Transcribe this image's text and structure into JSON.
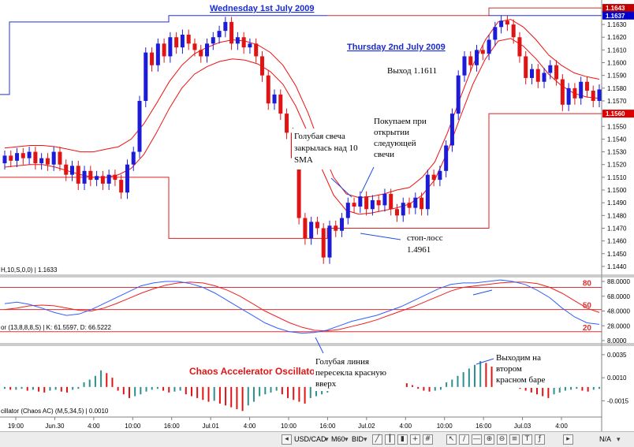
{
  "chart_data": {
    "type": "candlestick",
    "instrument": "USD/CAD",
    "timeframe": "M60",
    "price_axis": {
      "ylim": [
        1.1435,
        1.1648
      ],
      "ticks": [
        "1.1640",
        "1.1630",
        "1.1620",
        "1.1610",
        "1.1600",
        "1.1590",
        "1.1580",
        "1.1570",
        "1.1560",
        "1.1550",
        "1.1540",
        "1.1530",
        "1.1520",
        "1.1510",
        "1.1500",
        "1.1490",
        "1.1480",
        "1.1470",
        "1.1460",
        "1.1450",
        "1.1440"
      ],
      "markers": [
        {
          "label": "1.1643",
          "price": 1.1643,
          "color": "#c00000"
        },
        {
          "label": "1.1637",
          "price": 1.1637,
          "color": "#0000cc"
        },
        {
          "label": "1.1560",
          "price": 1.156,
          "color": "#dd0000"
        }
      ]
    },
    "time_axis": [
      "19:00",
      "Jun.30",
      "4:00",
      "10:00",
      "16:00",
      "Jul.01",
      "4:00",
      "10:00",
      "16:00",
      "Jul.02",
      "4:00",
      "10:00",
      "16:00",
      "Jul.03",
      "4:00"
    ],
    "day_labels": {
      "day1": "Wednesday 1st July 2009",
      "day2": "Thursday 2nd July 2009"
    },
    "candles": [
      {
        "o": 1.1521,
        "c": 1.1527
      },
      {
        "o": 1.1527,
        "c": 1.1523
      },
      {
        "o": 1.1523,
        "c": 1.1529
      },
      {
        "o": 1.1529,
        "c": 1.1525
      },
      {
        "o": 1.1525,
        "c": 1.153
      },
      {
        "o": 1.153,
        "c": 1.1521
      },
      {
        "o": 1.1521,
        "c": 1.1525
      },
      {
        "o": 1.1525,
        "c": 1.152
      },
      {
        "o": 1.152,
        "c": 1.153
      },
      {
        "o": 1.153,
        "c": 1.152
      },
      {
        "o": 1.152,
        "c": 1.1512
      },
      {
        "o": 1.1512,
        "c": 1.1519
      },
      {
        "o": 1.1519,
        "c": 1.1505
      },
      {
        "o": 1.1505,
        "c": 1.1515
      },
      {
        "o": 1.1515,
        "c": 1.1508
      },
      {
        "o": 1.1508,
        "c": 1.1511
      },
      {
        "o": 1.1511,
        "c": 1.1505
      },
      {
        "o": 1.1505,
        "c": 1.1512
      },
      {
        "o": 1.1512,
        "c": 1.1508
      },
      {
        "o": 1.1508,
        "c": 1.1498
      },
      {
        "o": 1.1498,
        "c": 1.152
      },
      {
        "o": 1.152,
        "c": 1.153
      },
      {
        "o": 1.153,
        "c": 1.157
      },
      {
        "o": 1.157,
        "c": 1.1608
      },
      {
        "o": 1.1608,
        "c": 1.1598
      },
      {
        "o": 1.1598,
        "c": 1.1615
      },
      {
        "o": 1.1615,
        "c": 1.1605
      },
      {
        "o": 1.1605,
        "c": 1.162
      },
      {
        "o": 1.162,
        "c": 1.1612
      },
      {
        "o": 1.1612,
        "c": 1.1622
      },
      {
        "o": 1.1622,
        "c": 1.1615
      },
      {
        "o": 1.1615,
        "c": 1.161
      },
      {
        "o": 1.161,
        "c": 1.1605
      },
      {
        "o": 1.1605,
        "c": 1.1615
      },
      {
        "o": 1.1615,
        "c": 1.162
      },
      {
        "o": 1.162,
        "c": 1.1625
      },
      {
        "o": 1.1625,
        "c": 1.1632
      },
      {
        "o": 1.1632,
        "c": 1.1615
      },
      {
        "o": 1.1615,
        "c": 1.162
      },
      {
        "o": 1.162,
        "c": 1.1612
      },
      {
        "o": 1.1612,
        "c": 1.1615
      },
      {
        "o": 1.1615,
        "c": 1.1605
      },
      {
        "o": 1.1605,
        "c": 1.159
      },
      {
        "o": 1.159,
        "c": 1.1568
      },
      {
        "o": 1.1568,
        "c": 1.1575
      },
      {
        "o": 1.1575,
        "c": 1.156
      },
      {
        "o": 1.156,
        "c": 1.1545
      },
      {
        "o": 1.1545,
        "c": 1.1525
      },
      {
        "o": 1.1525,
        "c": 1.1478
      },
      {
        "o": 1.1478,
        "c": 1.1462
      },
      {
        "o": 1.1462,
        "c": 1.1475
      },
      {
        "o": 1.1475,
        "c": 1.147
      },
      {
        "o": 1.147,
        "c": 1.1447
      },
      {
        "o": 1.1447,
        "c": 1.1472
      },
      {
        "o": 1.1472,
        "c": 1.1468
      },
      {
        "o": 1.1468,
        "c": 1.1478
      },
      {
        "o": 1.1478,
        "c": 1.149
      },
      {
        "o": 1.149,
        "c": 1.1487
      },
      {
        "o": 1.1487,
        "c": 1.1495
      },
      {
        "o": 1.1495,
        "c": 1.1485
      },
      {
        "o": 1.1485,
        "c": 1.1492
      },
      {
        "o": 1.1492,
        "c": 1.1488
      },
      {
        "o": 1.1488,
        "c": 1.1497
      },
      {
        "o": 1.1497,
        "c": 1.1485
      },
      {
        "o": 1.1485,
        "c": 1.148
      },
      {
        "o": 1.148,
        "c": 1.149
      },
      {
        "o": 1.149,
        "c": 1.1486
      },
      {
        "o": 1.1486,
        "c": 1.1494
      },
      {
        "o": 1.1494,
        "c": 1.1485
      },
      {
        "o": 1.1485,
        "c": 1.1512
      },
      {
        "o": 1.1512,
        "c": 1.1508
      },
      {
        "o": 1.1508,
        "c": 1.1515
      },
      {
        "o": 1.1515,
        "c": 1.1535
      },
      {
        "o": 1.1535,
        "c": 1.156
      },
      {
        "o": 1.156,
        "c": 1.159
      },
      {
        "o": 1.159,
        "c": 1.1605
      },
      {
        "o": 1.1605,
        "c": 1.1598
      },
      {
        "o": 1.1598,
        "c": 1.161
      },
      {
        "o": 1.161,
        "c": 1.1607
      },
      {
        "o": 1.1607,
        "c": 1.1618
      },
      {
        "o": 1.1618,
        "c": 1.1628
      },
      {
        "o": 1.1628,
        "c": 1.1633
      },
      {
        "o": 1.1633,
        "c": 1.163
      },
      {
        "o": 1.163,
        "c": 1.162
      },
      {
        "o": 1.162,
        "c": 1.1605
      },
      {
        "o": 1.1605,
        "c": 1.1588
      },
      {
        "o": 1.1588,
        "c": 1.1595
      },
      {
        "o": 1.1595,
        "c": 1.1585
      },
      {
        "o": 1.1585,
        "c": 1.1592
      },
      {
        "o": 1.1592,
        "c": 1.1598
      },
      {
        "o": 1.1598,
        "c": 1.1587
      },
      {
        "o": 1.1587,
        "c": 1.1567
      },
      {
        "o": 1.1567,
        "c": 1.158
      },
      {
        "o": 1.158,
        "c": 1.1572
      },
      {
        "o": 1.1572,
        "c": 1.1585
      },
      {
        "o": 1.1585,
        "c": 1.1578
      },
      {
        "o": 1.1578,
        "c": 1.157
      },
      {
        "o": 1.157,
        "c": 1.1579
      }
    ],
    "bands": {
      "upper": [
        1.1533,
        1.1534,
        1.1535,
        1.1535,
        1.1534,
        1.1532,
        1.153,
        1.153,
        1.1532,
        1.1534,
        1.154,
        1.1552,
        1.1568,
        1.1585,
        1.1598,
        1.1607,
        1.1612,
        1.1616,
        1.1618,
        1.1617,
        1.1614,
        1.1608,
        1.1598,
        1.1582,
        1.156,
        1.1533,
        1.151,
        1.1497,
        1.1494,
        1.1495,
        1.1497,
        1.15,
        1.1502,
        1.151,
        1.1522,
        1.1545,
        1.1572,
        1.1598,
        1.1618,
        1.1632,
        1.1634,
        1.1628,
        1.1618,
        1.1606,
        1.1598,
        1.1592,
        1.1589,
        1.1587
      ],
      "lower": [
        1.1518,
        1.1519,
        1.152,
        1.152,
        1.1518,
        1.1515,
        1.1512,
        1.151,
        1.151,
        1.1512,
        1.1517,
        1.1528,
        1.1545,
        1.1564,
        1.158,
        1.1591,
        1.1597,
        1.1601,
        1.1603,
        1.1602,
        1.1599,
        1.1593,
        1.1583,
        1.1566,
        1.1544,
        1.1518,
        1.1496,
        1.1484,
        1.1481,
        1.1482,
        1.1484,
        1.1486,
        1.1489,
        1.1496,
        1.1508,
        1.153,
        1.1557,
        1.1583,
        1.1603,
        1.1617,
        1.1619,
        1.1613,
        1.1603,
        1.1591,
        1.1582,
        1.1576,
        1.1573,
        1.1572
      ]
    },
    "channel": {
      "day1_high": 1.1637,
      "day1_low": 1.1462,
      "day2_high": 1.1643,
      "day2_low": 1.1525
    },
    "stochastic": {
      "label": "or (13,8,8,8,S) | K: 61.5597, D: 66.5222",
      "levels": [
        {
          "value": 80,
          "label": "80"
        },
        {
          "value": 50,
          "label": "50"
        },
        {
          "value": 20,
          "label": "20"
        }
      ],
      "ticks": [
        "88.0000",
        "68.0000",
        "48.0000",
        "28.0000",
        "8.0000"
      ],
      "k": [
        58,
        60,
        57,
        52,
        46,
        42,
        44,
        50,
        58,
        66,
        74,
        82,
        86,
        88,
        88,
        85,
        80,
        72,
        62,
        52,
        42,
        32,
        25,
        20,
        18,
        19,
        22,
        28,
        34,
        38,
        42,
        48,
        54,
        62,
        70,
        78,
        84,
        86,
        86,
        88,
        90,
        88,
        84,
        76,
        66,
        52,
        40,
        32,
        30
      ],
      "d": [
        50,
        52,
        55,
        56,
        55,
        52,
        49,
        48,
        52,
        58,
        65,
        72,
        78,
        83,
        86,
        87,
        86,
        82,
        76,
        68,
        58,
        48,
        40,
        32,
        26,
        22,
        21,
        23,
        27,
        31,
        36,
        42,
        48,
        54,
        61,
        68,
        75,
        80,
        82,
        84,
        86,
        87,
        87,
        85,
        80,
        72,
        62,
        52,
        46
      ]
    },
    "accelerator": {
      "title": "Chaos Accelerator Oscillator",
      "label": "cillator (Chaos AC) (M,5,34,5) | 0.0010",
      "ticks": [
        "0.0035",
        "0.0010",
        "-0.0015"
      ],
      "values": [
        -2,
        -3,
        -3,
        -2,
        -4,
        -3,
        -5,
        -6,
        -4,
        -3,
        -5,
        -6,
        -3,
        -2,
        5,
        8,
        12,
        18,
        15,
        10,
        -4,
        -8,
        -12,
        -10,
        -8,
        -5,
        -3,
        -2,
        -4,
        -6,
        -5,
        -4,
        -8,
        -10,
        -12,
        -14,
        -16,
        -15,
        -18,
        -20,
        -22,
        -24,
        -26,
        -20,
        -16,
        -10,
        -8,
        -6,
        -4,
        -8,
        -12,
        -14,
        -16,
        -18,
        -12,
        -10,
        -8,
        -6,
        -4,
        -2,
        4,
        6,
        10,
        14,
        18,
        22,
        24,
        20,
        15,
        10,
        6,
        4,
        2,
        -2,
        -4,
        -5,
        -4,
        -3,
        5,
        8,
        12,
        16,
        20,
        24,
        28,
        26,
        22,
        18,
        14,
        8,
        4,
        -2,
        -4,
        -6,
        -8,
        -10,
        -12,
        -8,
        -6,
        -4,
        -3,
        -2,
        -4,
        -5,
        -3,
        -2
      ],
      "ylim": [
        -0.003,
        0.004
      ]
    },
    "left_labels": {
      "main": "H,10,S,0,0) | 1.1633"
    },
    "annotations": [
      {
        "id": "blue-candle",
        "lines": [
          "Голубая свеча",
          "закрылась над 10",
          "SMA"
        ]
      },
      {
        "id": "buy",
        "lines": [
          "Покупаем при",
          "открытии",
          "следующей",
          "свечи"
        ]
      },
      {
        "id": "exit",
        "lines": [
          "Выход 1.1611"
        ]
      },
      {
        "id": "stop",
        "lines": [
          "стоп-лосс",
          "1.4961"
        ]
      },
      {
        "id": "cross",
        "lines": [
          "Голубая линия",
          "пересекла красную",
          "вверх"
        ]
      },
      {
        "id": "exit-bar",
        "lines": [
          "Выходим на",
          "втором",
          "красном баре"
        ]
      }
    ]
  },
  "toolbar": {
    "symbol": "USD/CAD",
    "timeframe": "M60",
    "side": "BID",
    "zoom": "N/A"
  },
  "colors": {
    "bull": "#1c1cd8",
    "bear": "#e01414",
    "band": "#ee1111",
    "channel": "#dd2222",
    "stoch_k": "#3060ff",
    "stoch_d": "#ee2222",
    "ac_up": "#2e8f8f",
    "ac_down": "#e01414",
    "title_blue": "#1a2ad0"
  }
}
